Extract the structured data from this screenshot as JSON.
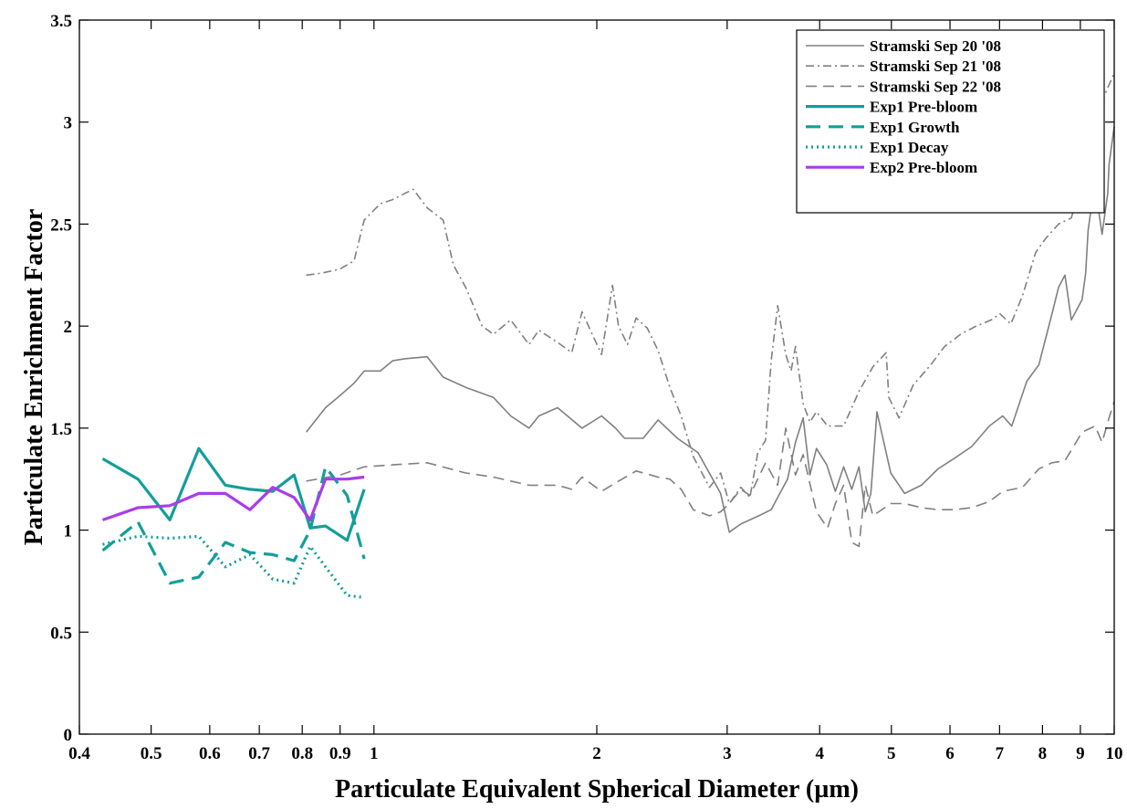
{
  "chart_data": {
    "type": "line",
    "title": "",
    "xlabel": "Particulate Equivalent Spherical Diameter (µm)",
    "ylabel": "Particulate Enrichment Factor",
    "xscale": "log",
    "xlim": [
      0.4,
      10
    ],
    "ylim": [
      0,
      3.5
    ],
    "x_ticks": [
      0.4,
      0.5,
      0.6,
      0.7,
      0.8,
      0.9,
      1,
      2,
      3,
      4,
      5,
      6,
      7,
      8,
      9,
      10
    ],
    "x_tick_labels": [
      "0.4",
      "0.5",
      "0.6",
      "0.7",
      "0.8",
      "0.9",
      "1",
      "2",
      "3",
      "4",
      "5",
      "6",
      "7",
      "8",
      "9",
      "10"
    ],
    "y_ticks": [
      0,
      0.5,
      1,
      1.5,
      2,
      2.5,
      3,
      3.5
    ],
    "y_tick_labels": [
      "0",
      "0.5",
      "1",
      "1.5",
      "2",
      "2.5",
      "3",
      "3.5"
    ],
    "grid": false,
    "legend_position": "top-right",
    "series": [
      {
        "name": "Stramski Sep 20 '08",
        "color": "#808080",
        "style": "solid",
        "x": [
          0.81,
          0.86,
          0.9,
          0.94,
          0.97,
          1.02,
          1.06,
          1.1,
          1.18,
          1.24,
          1.33,
          1.45,
          1.53,
          1.62,
          1.67,
          1.77,
          1.91,
          2.03,
          2.12,
          2.18,
          2.26,
          2.31,
          2.42,
          2.57,
          2.74,
          2.94,
          3.02,
          3.13,
          3.31,
          3.44,
          3.51,
          3.62,
          3.71,
          3.8,
          3.88,
          3.96,
          4.09,
          4.2,
          4.31,
          4.42,
          4.52,
          4.61,
          4.69,
          4.78,
          4.99,
          5.21,
          5.49,
          5.78,
          6.07,
          6.42,
          6.78,
          7.07,
          7.27,
          7.62,
          7.91,
          8.08,
          8.24,
          8.41,
          8.58,
          8.75,
          9.05,
          9.15,
          9.22,
          9.41,
          9.63,
          9.8,
          9.84,
          10.0
        ],
        "y": [
          1.48,
          1.6,
          1.66,
          1.72,
          1.78,
          1.78,
          1.83,
          1.84,
          1.85,
          1.75,
          1.7,
          1.65,
          1.56,
          1.5,
          1.56,
          1.6,
          1.5,
          1.56,
          1.5,
          1.45,
          1.45,
          1.45,
          1.54,
          1.45,
          1.38,
          1.18,
          0.99,
          1.03,
          1.07,
          1.1,
          1.16,
          1.25,
          1.43,
          1.55,
          1.27,
          1.4,
          1.32,
          1.19,
          1.31,
          1.2,
          1.31,
          1.09,
          1.18,
          1.58,
          1.28,
          1.18,
          1.22,
          1.3,
          1.35,
          1.41,
          1.51,
          1.56,
          1.51,
          1.73,
          1.81,
          1.94,
          2.06,
          2.19,
          2.25,
          2.03,
          2.13,
          2.26,
          2.47,
          2.7,
          2.45,
          2.65,
          2.79,
          2.98
        ]
      },
      {
        "name": "Stramski Sep 21 '08",
        "color": "#808080",
        "style": "dashdot",
        "x": [
          0.81,
          0.85,
          0.9,
          0.94,
          0.97,
          1.02,
          1.06,
          1.1,
          1.13,
          1.18,
          1.24,
          1.28,
          1.33,
          1.4,
          1.45,
          1.53,
          1.62,
          1.67,
          1.77,
          1.85,
          1.91,
          2.03,
          2.1,
          2.14,
          2.2,
          2.26,
          2.34,
          2.42,
          2.51,
          2.6,
          2.7,
          2.84,
          2.94,
          3.02,
          3.13,
          3.22,
          3.3,
          3.38,
          3.44,
          3.51,
          3.6,
          3.66,
          3.71,
          3.8,
          3.88,
          3.96,
          4.1,
          4.31,
          4.52,
          4.72,
          4.92,
          4.96,
          5.12,
          5.35,
          5.65,
          5.9,
          6.2,
          6.51,
          6.82,
          7.01,
          7.25,
          7.52,
          7.83,
          8.08,
          8.41,
          8.75,
          9.05,
          9.42,
          9.75,
          10.0
        ],
        "y": [
          2.25,
          2.26,
          2.28,
          2.32,
          2.52,
          2.6,
          2.62,
          2.65,
          2.67,
          2.58,
          2.52,
          2.3,
          2.19,
          2.0,
          1.96,
          2.03,
          1.91,
          1.98,
          1.92,
          1.87,
          2.07,
          1.86,
          2.2,
          2.0,
          1.91,
          2.04,
          1.99,
          1.88,
          1.7,
          1.56,
          1.36,
          1.21,
          1.28,
          1.13,
          1.21,
          1.16,
          1.38,
          1.44,
          1.83,
          2.1,
          1.86,
          1.78,
          1.9,
          1.62,
          1.53,
          1.58,
          1.51,
          1.51,
          1.68,
          1.8,
          1.87,
          1.65,
          1.55,
          1.71,
          1.81,
          1.9,
          1.96,
          2.0,
          2.03,
          2.06,
          2.01,
          2.15,
          2.36,
          2.43,
          2.5,
          2.53,
          2.73,
          3.02,
          3.15,
          3.24
        ]
      },
      {
        "name": "Stramski Sep 22 '08",
        "color": "#808080",
        "style": "dashed",
        "x": [
          0.81,
          0.9,
          0.97,
          1.06,
          1.18,
          1.33,
          1.45,
          1.62,
          1.77,
          1.85,
          1.91,
          2.03,
          2.14,
          2.26,
          2.42,
          2.51,
          2.6,
          2.7,
          2.84,
          2.94,
          3.02,
          3.13,
          3.22,
          3.38,
          3.51,
          3.6,
          3.71,
          3.8,
          3.96,
          4.1,
          4.2,
          4.31,
          4.42,
          4.52,
          4.61,
          4.72,
          4.99,
          5.21,
          5.49,
          5.78,
          6.07,
          6.42,
          6.78,
          7.07,
          7.52,
          7.91,
          8.24,
          8.58,
          9.05,
          9.42,
          9.63,
          9.84,
          10.0
        ],
        "y": [
          1.24,
          1.27,
          1.31,
          1.32,
          1.33,
          1.28,
          1.26,
          1.22,
          1.22,
          1.2,
          1.26,
          1.19,
          1.24,
          1.29,
          1.26,
          1.25,
          1.2,
          1.1,
          1.07,
          1.09,
          1.13,
          1.2,
          1.17,
          1.33,
          1.22,
          1.5,
          1.27,
          1.37,
          1.09,
          1.01,
          1.13,
          1.22,
          0.94,
          0.92,
          1.22,
          1.07,
          1.13,
          1.13,
          1.11,
          1.1,
          1.1,
          1.11,
          1.14,
          1.19,
          1.21,
          1.3,
          1.33,
          1.34,
          1.48,
          1.51,
          1.43,
          1.55,
          1.63
        ]
      },
      {
        "name": "Exp1 Pre-bloom",
        "color": "#139E99",
        "style": "solid-thick",
        "x": [
          0.43,
          0.48,
          0.53,
          0.58,
          0.63,
          0.68,
          0.73,
          0.78,
          0.82,
          0.86,
          0.92,
          0.97
        ],
        "y": [
          1.35,
          1.25,
          1.05,
          1.4,
          1.22,
          1.2,
          1.19,
          1.27,
          1.01,
          1.02,
          0.95,
          1.2
        ]
      },
      {
        "name": "Exp1 Growth",
        "color": "#139E99",
        "style": "dashed-thick",
        "x": [
          0.43,
          0.48,
          0.53,
          0.58,
          0.63,
          0.68,
          0.73,
          0.78,
          0.82,
          0.86,
          0.92,
          0.97
        ],
        "y": [
          0.9,
          1.04,
          0.74,
          0.77,
          0.94,
          0.89,
          0.88,
          0.85,
          1.0,
          1.31,
          1.17,
          0.86
        ]
      },
      {
        "name": "Exp1 Decay",
        "color": "#139E99",
        "style": "dotted-thick",
        "x": [
          0.43,
          0.48,
          0.53,
          0.58,
          0.63,
          0.68,
          0.73,
          0.78,
          0.82,
          0.86,
          0.92,
          0.97
        ],
        "y": [
          0.93,
          0.97,
          0.96,
          0.97,
          0.82,
          0.88,
          0.76,
          0.74,
          0.92,
          0.82,
          0.68,
          0.67
        ]
      },
      {
        "name": "Exp2 Pre-bloom",
        "color": "#A93DE8",
        "style": "solid-thick",
        "x": [
          0.43,
          0.48,
          0.53,
          0.58,
          0.63,
          0.68,
          0.73,
          0.78,
          0.82,
          0.86,
          0.92,
          0.97
        ],
        "y": [
          1.05,
          1.11,
          1.12,
          1.18,
          1.18,
          1.1,
          1.21,
          1.16,
          1.05,
          1.25,
          1.25,
          1.26
        ]
      }
    ]
  }
}
